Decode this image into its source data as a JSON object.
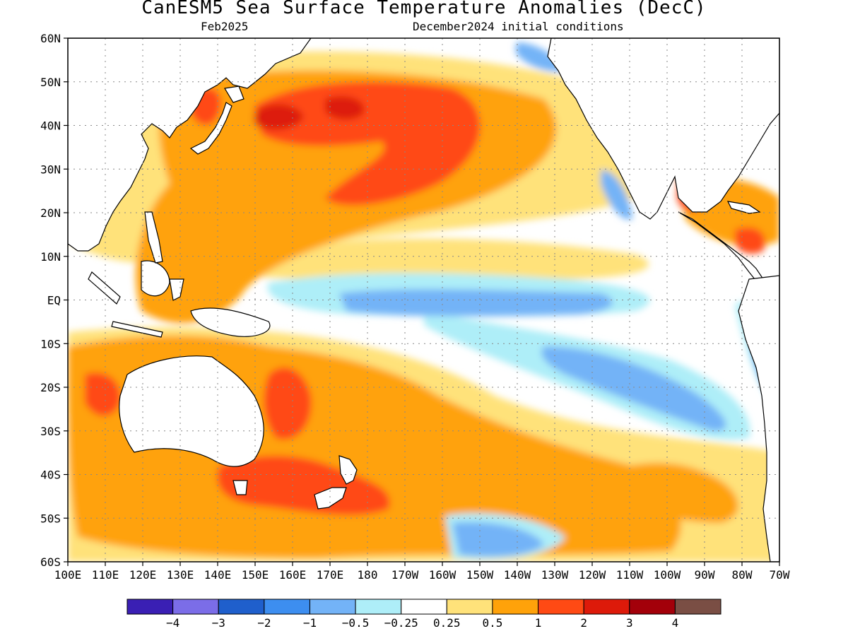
{
  "title": "CanESM5 Sea Surface Temperature Anomalies (DecC)",
  "valid_month": "Feb2025",
  "init_conditions": "December2024 initial conditions",
  "lat_labels": [
    "60N",
    "50N",
    "40N",
    "30N",
    "20N",
    "10N",
    "EQ",
    "10S",
    "20S",
    "30S",
    "40S",
    "50S",
    "60S"
  ],
  "lon_labels": [
    "100E",
    "110E",
    "120E",
    "130E",
    "140E",
    "150E",
    "160E",
    "170E",
    "180",
    "170W",
    "160W",
    "150W",
    "140W",
    "130W",
    "120W",
    "110W",
    "100W",
    "90W",
    "80W",
    "70W"
  ],
  "colorbar": {
    "colors": [
      "#3a1fb4",
      "#7b6de8",
      "#1f5fcc",
      "#3d8ef0",
      "#73b3f7",
      "#aeeef8",
      "#ffffff",
      "#ffe27a",
      "#ffa20a",
      "#ff4a14",
      "#dd1a0a",
      "#a3000a",
      "#7a4e44"
    ],
    "tick_labels": [
      "−4",
      "−3",
      "−2",
      "−1",
      "−0.5",
      "−0.25",
      "0.25",
      "0.5",
      "1",
      "2",
      "3",
      "4"
    ]
  },
  "palette": {
    "lightyellow": "#ffe27a",
    "orange": "#ffa20a",
    "red": "#ff4a14",
    "darkred": "#dd1a0a",
    "maroon": "#a3000a",
    "cyan": "#aeeef8",
    "lightblue": "#73b3f7",
    "blue": "#3d8ef0",
    "royal": "#1f5fcc",
    "purple": "#3a1fb4"
  },
  "land_fill": "#ffffff"
}
